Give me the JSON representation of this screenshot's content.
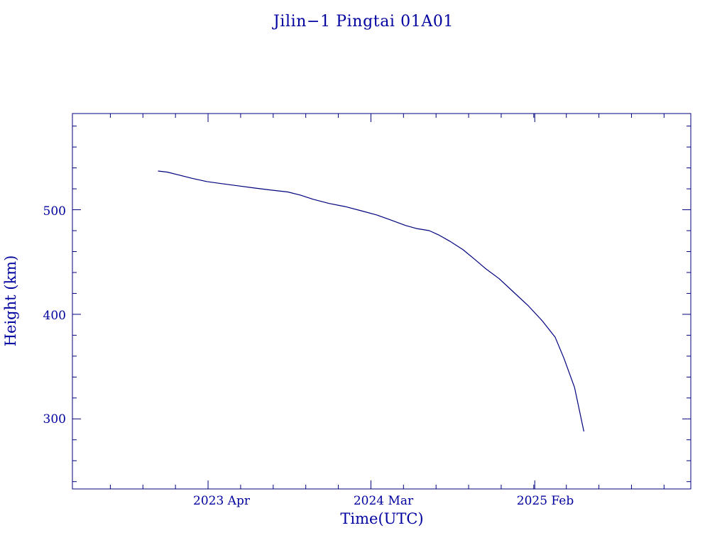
{
  "chart_data": {
    "type": "line",
    "title": "Jilin−1 Pingtai 01A01",
    "xlabel": "Time(UTC)",
    "ylabel": "Height (km)",
    "x_tick_labels": [
      "2023 Apr",
      "2024 Mar",
      "2025 Feb"
    ],
    "y_tick_labels": [
      "300",
      "400",
      "500"
    ],
    "y_ticks": [
      300,
      400,
      500
    ],
    "ylim": [
      233,
      592
    ],
    "x_axis_type": "date",
    "xlim": [
      "2022-06-26",
      "2025-12-19"
    ],
    "x_tick_dates": [
      "2023-04-01",
      "2024-03-01",
      "2025-02-01"
    ],
    "grid": false,
    "colors": {
      "frame": "#00007f",
      "line": "#00007f",
      "text": "#0000a0"
    },
    "series": [
      {
        "points": [
          {
            "x": "2022-12-19",
            "y": 537
          },
          {
            "x": "2023-01-07",
            "y": 536
          },
          {
            "x": "2023-02-02",
            "y": 533
          },
          {
            "x": "2023-02-28",
            "y": 530
          },
          {
            "x": "2023-03-29",
            "y": 527
          },
          {
            "x": "2023-04-28",
            "y": 525
          },
          {
            "x": "2023-05-31",
            "y": 523
          },
          {
            "x": "2023-07-02",
            "y": 521
          },
          {
            "x": "2023-08-06",
            "y": 519
          },
          {
            "x": "2023-09-12",
            "y": 517
          },
          {
            "x": "2023-10-08",
            "y": 514
          },
          {
            "x": "2023-11-03",
            "y": 510
          },
          {
            "x": "2023-12-06",
            "y": 506
          },
          {
            "x": "2024-01-08",
            "y": 503
          },
          {
            "x": "2024-02-10",
            "y": 499
          },
          {
            "x": "2024-03-13",
            "y": 495
          },
          {
            "x": "2024-04-12",
            "y": 490
          },
          {
            "x": "2024-05-11",
            "y": 485
          },
          {
            "x": "2024-06-03",
            "y": 482
          },
          {
            "x": "2024-06-17",
            "y": 481
          },
          {
            "x": "2024-06-29",
            "y": 480
          },
          {
            "x": "2024-07-18",
            "y": 476
          },
          {
            "x": "2024-08-10",
            "y": 470
          },
          {
            "x": "2024-09-06",
            "y": 462
          },
          {
            "x": "2024-10-02",
            "y": 452
          },
          {
            "x": "2024-10-22",
            "y": 444
          },
          {
            "x": "2024-11-20",
            "y": 434
          },
          {
            "x": "2024-12-20",
            "y": 421
          },
          {
            "x": "2025-01-19",
            "y": 408
          },
          {
            "x": "2025-02-16",
            "y": 394
          },
          {
            "x": "2025-03-15",
            "y": 378
          },
          {
            "x": "2025-04-02",
            "y": 358
          },
          {
            "x": "2025-04-24",
            "y": 330
          },
          {
            "x": "2025-05-13",
            "y": 288
          }
        ]
      }
    ]
  }
}
